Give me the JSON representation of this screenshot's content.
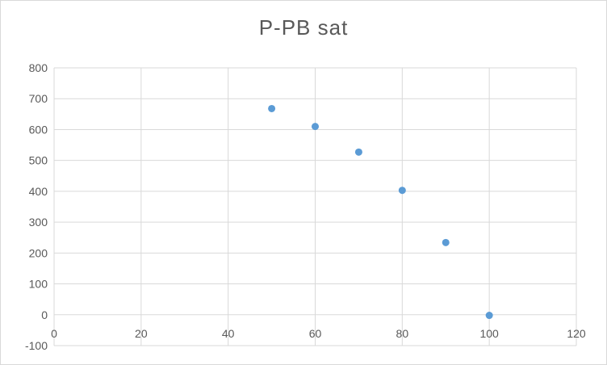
{
  "chart_data": {
    "type": "scatter",
    "title": "P-PB sat",
    "xlabel": "",
    "ylabel": "",
    "xlim": [
      0,
      120
    ],
    "ylim": [
      -100,
      800
    ],
    "x_ticks": [
      0,
      20,
      40,
      60,
      80,
      100,
      120
    ],
    "y_ticks": [
      -100,
      0,
      100,
      200,
      300,
      400,
      500,
      600,
      700,
      800
    ],
    "grid": true,
    "legend": "none",
    "series": [
      {
        "x": [
          50,
          60,
          70,
          80,
          90,
          100
        ],
        "y": [
          668,
          610,
          527,
          403,
          234,
          -2
        ]
      }
    ],
    "colors": {
      "marker": "#5b9bd5",
      "grid": "#d9d9d9",
      "text": "#595959"
    }
  }
}
